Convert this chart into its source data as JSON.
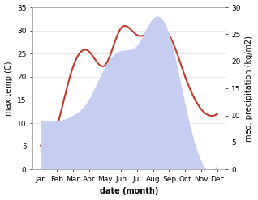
{
  "months": [
    "Jan",
    "Feb",
    "Mar",
    "Apr",
    "May",
    "Jun",
    "Jul",
    "Aug",
    "Sep",
    "Oct",
    "Nov",
    "Dec"
  ],
  "x_positions": [
    0,
    1,
    2,
    3,
    4,
    5,
    6,
    7,
    8,
    9,
    10,
    11
  ],
  "max_temp": [
    5.2,
    9.0,
    22.0,
    25.5,
    22.5,
    30.5,
    29.0,
    30.0,
    29.0,
    20.0,
    13.0,
    12.0
  ],
  "precipitation": [
    9.0,
    9.0,
    10.0,
    13.0,
    19.0,
    22.0,
    23.0,
    28.0,
    25.0,
    12.0,
    1.5,
    1.0
  ],
  "temp_ylim": [
    0,
    35
  ],
  "precip_ylim": [
    0,
    30
  ],
  "temp_yticks": [
    0,
    5,
    10,
    15,
    20,
    25,
    30,
    35
  ],
  "precip_yticks": [
    0,
    5,
    10,
    15,
    20,
    25,
    30
  ],
  "temp_color": "#c0392b",
  "precip_fill_color": "#c5cdf0",
  "xlabel": "date (month)",
  "ylabel_left": "max temp (C)",
  "ylabel_right": "med. precipitation (kg/m2)",
  "bg_color": "#ffffff",
  "temp_linewidth": 1.5,
  "label_fontsize": 7,
  "tick_fontsize": 6.5,
  "xlabel_fontsize": 7,
  "xlabel_fontweight": "bold"
}
